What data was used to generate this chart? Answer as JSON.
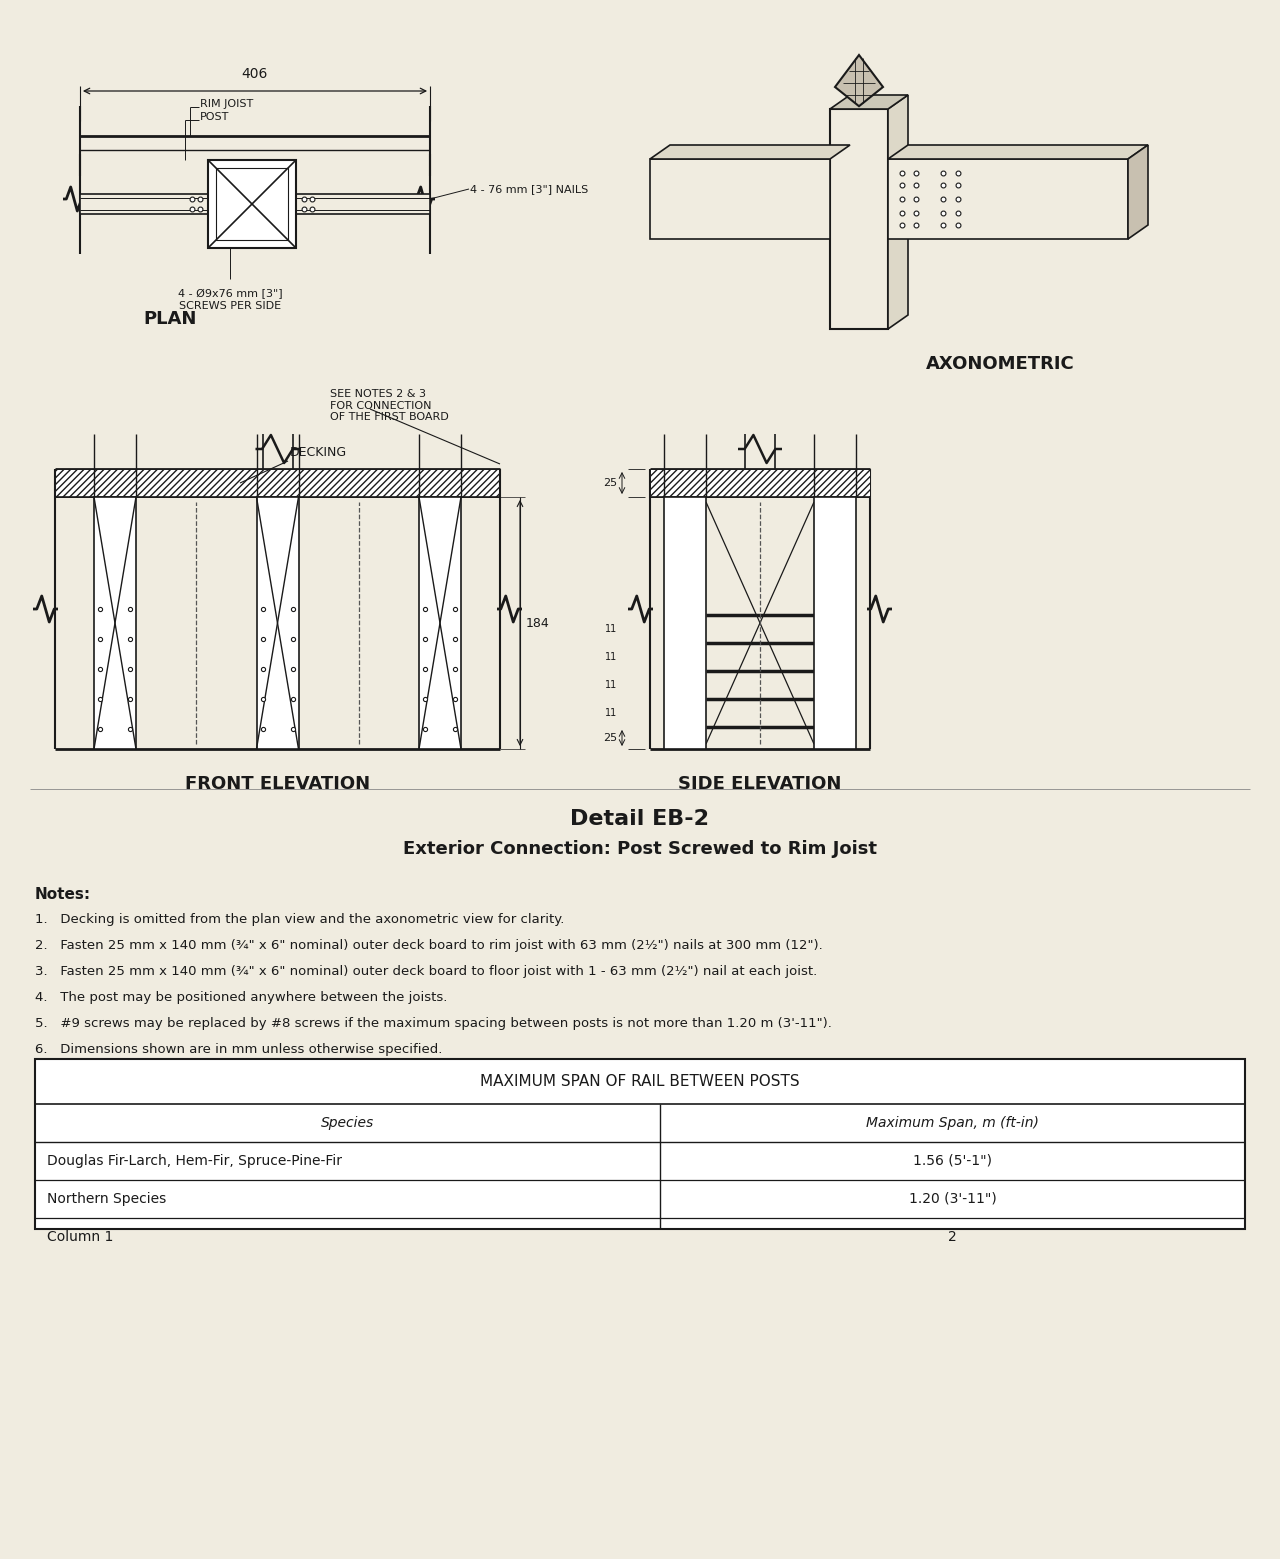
{
  "background_color": "#f0ece0",
  "line_color": "#1a1a1a",
  "title1": "Detail EB-2",
  "title2": "Exterior Connection: Post Screwed to Rim Joist",
  "label_plan": "PLAN",
  "label_axonometric": "AXONOMETRIC",
  "label_front": "FRONT ELEVATION",
  "label_side": "SIDE ELEVATION",
  "dim_406": "406",
  "label_rim_joist": "RIM JOIST",
  "label_post": "POST",
  "label_nails": "4 - 76 mm [3\"] NAILS",
  "label_screws": "4 - Ø9x76 mm [3\"]\nSCREWS PER SIDE",
  "label_decking": "DECKING",
  "label_see_notes": "SEE NOTES 2 & 3\nFOR CONNECTION\nOF THE FIRST BOARD",
  "dim_184": "184",
  "dim_25": "25",
  "dim_25b": "25",
  "notes_title": "Notes:",
  "notes": [
    "Decking is omitted from the plan view and the axonometric view for clarity.",
    "Fasten 25 mm x 140 mm (¾\" x 6\" nominal) outer deck board to rim joist with 63 mm (2½\") nails at 300 mm (12\").",
    "Fasten 25 mm x 140 mm (¾\" x 6\" nominal) outer deck board to floor joist with 1 - 63 mm (2½\") nail at each joist.",
    "The post may be positioned anywhere between the joists.",
    "#9 screws may be replaced by #8 screws if the maximum spacing between posts is not more than 1.20 m (3'-11\").",
    "Dimensions shown are in mm unless otherwise specified."
  ],
  "table_title": "MAXIMUM SPAN OF RAIL BETWEEN POSTS",
  "table_headers": [
    "Species",
    "Maximum Span, m (ft-in)"
  ],
  "table_rows": [
    [
      "Douglas Fir-Larch, Hem-Fir, Spruce-Pine-Fir",
      "1.56 (5'-1\")"
    ],
    [
      "Northern Species",
      "1.20 (3'-11\")"
    ],
    [
      "Column 1",
      "2"
    ]
  ]
}
